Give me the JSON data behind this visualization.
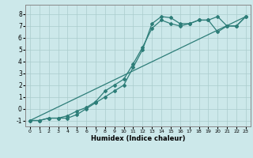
{
  "xlabel": "Humidex (Indice chaleur)",
  "xlim": [
    -0.5,
    23.5
  ],
  "ylim": [
    -1.5,
    8.8
  ],
  "yticks": [
    -1,
    0,
    1,
    2,
    3,
    4,
    5,
    6,
    7,
    8
  ],
  "xticks": [
    0,
    1,
    2,
    3,
    4,
    5,
    6,
    7,
    8,
    9,
    10,
    11,
    12,
    13,
    14,
    15,
    16,
    17,
    18,
    19,
    20,
    21,
    22,
    23
  ],
  "bg_color": "#cce8ea",
  "grid_color": "#aacccc",
  "line_color": "#2d7d78",
  "line1_x": [
    0,
    1,
    2,
    3,
    4,
    5,
    6,
    7,
    8,
    9,
    10,
    11,
    12,
    13,
    14,
    15,
    16,
    17,
    18,
    19,
    20,
    21,
    22,
    23
  ],
  "line1_y": [
    -1,
    -1,
    -0.8,
    -0.8,
    -0.8,
    -0.5,
    0.0,
    0.5,
    1.0,
    1.5,
    2.0,
    3.5,
    5.0,
    7.2,
    7.8,
    7.7,
    7.2,
    7.2,
    7.5,
    7.5,
    7.8,
    7.0,
    7.0,
    7.8
  ],
  "line2_x": [
    0,
    1,
    2,
    3,
    4,
    5,
    6,
    7,
    8,
    9,
    10,
    11,
    12,
    13,
    14,
    15,
    16,
    17,
    18,
    19,
    20,
    21,
    22,
    23
  ],
  "line2_y": [
    -1,
    -1,
    -0.8,
    -0.8,
    -0.6,
    -0.2,
    0.1,
    0.6,
    1.5,
    2.0,
    2.5,
    3.8,
    5.2,
    6.8,
    7.5,
    7.2,
    7.0,
    7.2,
    7.5,
    7.5,
    6.5,
    7.0,
    7.0,
    7.8
  ],
  "line3_x": [
    0,
    23
  ],
  "line3_y": [
    -1,
    7.8
  ]
}
